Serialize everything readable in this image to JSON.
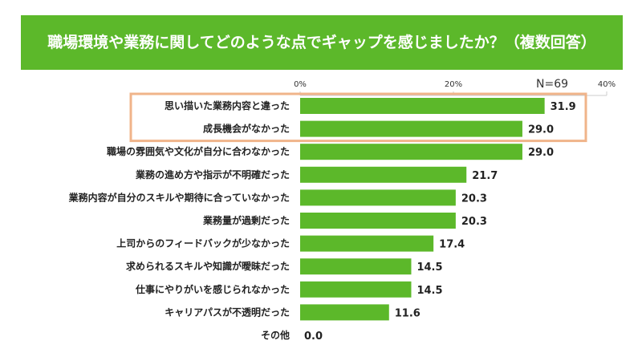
{
  "chart_data": {
    "type": "bar",
    "orientation": "horizontal",
    "title": "職場環境や業務に関してどのような点でギャップを感じましたか？（複数回答）",
    "annotation": "N=69",
    "categories": [
      "思い描いた業務内容と違った",
      "成長機会がなかった",
      "職場の雰囲気や文化が自分に合わなかった",
      "業務の進め方や指示が不明確だった",
      "業務内容が自分のスキルや期待に合っていなかった",
      "業務量が過剰だった",
      "上司からのフィードバックが少なかった",
      "求められるスキルや知識が曖昧だった",
      "仕事にやりがいを感じられなかった",
      "キャリアパスが不透明だった",
      "その他"
    ],
    "values": [
      31.9,
      29.0,
      29.0,
      21.7,
      20.3,
      20.3,
      17.4,
      14.5,
      14.5,
      11.6,
      0.0
    ],
    "value_labels": [
      "31.9",
      "29.0",
      "29.0",
      "21.7",
      "20.3",
      "20.3",
      "17.4",
      "14.5",
      "14.5",
      "11.6",
      "0.0"
    ],
    "xlim": [
      0,
      40
    ],
    "ticks": [
      0,
      20,
      40
    ],
    "tick_labels": [
      "0%",
      "20%",
      "40%"
    ],
    "highlighted_categories": [
      0,
      1
    ],
    "grid": true,
    "colors": {
      "bar": "#5cb82a",
      "banner": "#5cb82a",
      "highlight_box": "#f0b48a"
    }
  }
}
